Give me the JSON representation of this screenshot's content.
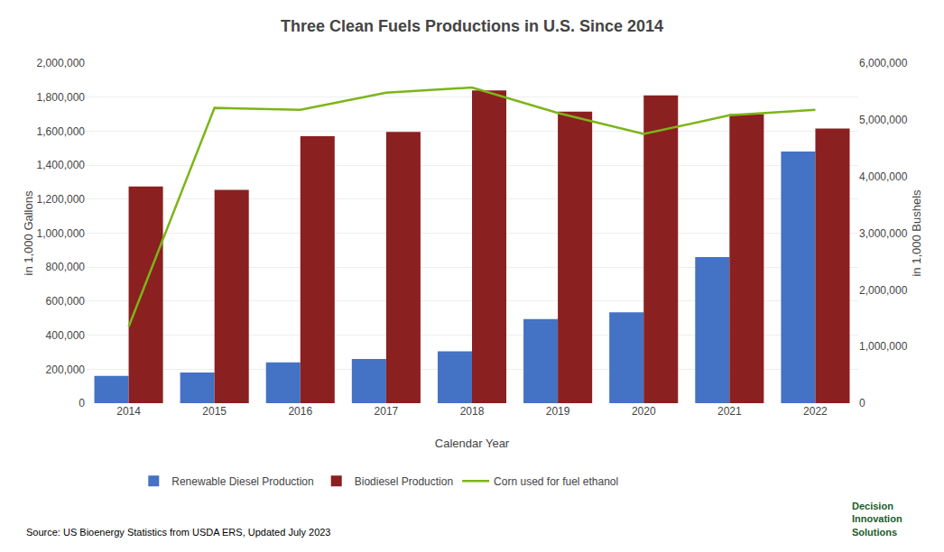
{
  "chart_data": {
    "type": "bar",
    "title": "Three Clean Fuels Productions in U.S. Since 2014",
    "x_label": "Calendar Year",
    "y_label": "in 1,000 Gallons",
    "y2_label": "in 1,000 Bushels",
    "categories": [
      "2014",
      "2015",
      "2016",
      "2017",
      "2018",
      "2019",
      "2020",
      "2021",
      "2022"
    ],
    "series": [
      {
        "name": "Renewable Diesel Production",
        "type": "bar",
        "color": "#4472C4",
        "values": [
          160000,
          180000,
          240000,
          260000,
          305000,
          495000,
          535000,
          860000,
          1480000
        ]
      },
      {
        "name": "Biodiesel Production",
        "type": "bar",
        "color": "#8B2020",
        "values": [
          1275000,
          1255000,
          1570000,
          1595000,
          1840000,
          1715000,
          1810000,
          1700000,
          1615000
        ]
      },
      {
        "name": "Corn used for fuel ethanol",
        "type": "line",
        "axis": "y2",
        "color": "#7CB518",
        "values": [
          1350000,
          5210000,
          5175000,
          5480000,
          5570000,
          5120000,
          4750000,
          5080000,
          5175000
        ]
      }
    ],
    "ylim": [
      0,
      2000000
    ],
    "yticks": [
      0,
      {
        "value": 200000,
        "label": "200,000"
      },
      {
        "value": 400000,
        "label": "400,000"
      },
      {
        "value": 600000,
        "label": "600,000"
      },
      {
        "value": 800000,
        "label": "800,000"
      },
      {
        "value": 1000000,
        "label": "1,000,000"
      },
      {
        "value": 1200000,
        "label": "1,200,000"
      },
      {
        "value": 1400000,
        "label": "1,400,000"
      },
      {
        "value": 1600000,
        "label": "1,600,000"
      },
      {
        "value": 1800000,
        "label": "1,800,000"
      },
      {
        "value": 2000000,
        "label": "2,000,000"
      }
    ],
    "y2lim": [
      0,
      6000000
    ],
    "y2ticks": [
      0,
      {
        "value": 1000000,
        "label": "1,000,000"
      },
      {
        "value": 2000000,
        "label": "2,000,000"
      },
      {
        "value": 3000000,
        "label": "3,000,000"
      },
      {
        "value": 4000000,
        "label": "4,000,000"
      },
      {
        "value": 5000000,
        "label": "5,000,000"
      },
      {
        "value": 6000000,
        "label": "6,000,000"
      }
    ],
    "grid": true,
    "legend": "bottom",
    "annotations": [
      {
        "text": "Source: US Bioenergy Statistics from USDA ERS, Updated July 2023",
        "color": "#000000"
      },
      {
        "text": "Decision\nInnovation\nSolutions",
        "color": "#1a5c2a"
      }
    ]
  }
}
